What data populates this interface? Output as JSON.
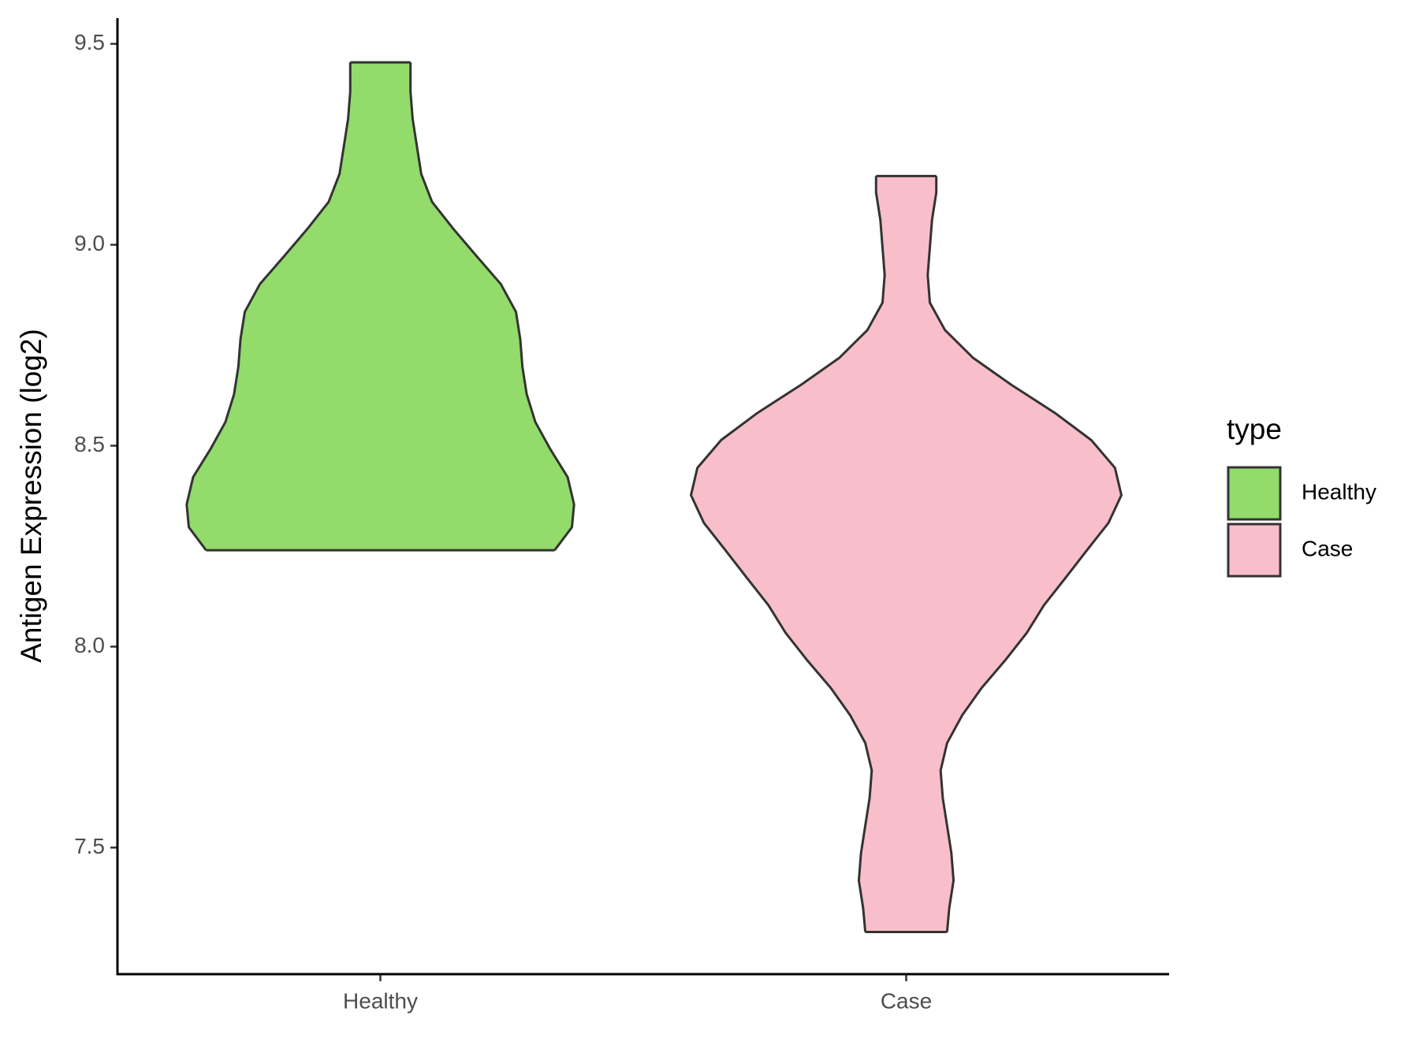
{
  "chart_data": {
    "type": "violin",
    "ylabel": "Antigen Expression (log2)",
    "categories": [
      "Healthy",
      "Case"
    ],
    "legend_title": "type",
    "ylim": [
      7.185,
      9.564
    ],
    "yticks": [
      7.5,
      {
        "value": 8,
        "label": "8.0"
      },
      8.5,
      {
        "value": 9,
        "label": "9.0"
      },
      9.5
    ],
    "series": [
      {
        "name": "Healthy",
        "color": "#93db6b",
        "y": [
          8.24,
          8.297,
          8.354,
          8.422,
          8.491,
          8.559,
          8.628,
          8.696,
          8.765,
          8.833,
          8.902,
          8.97,
          9.039,
          9.107,
          9.176,
          9.244,
          9.313,
          9.381,
          9.454
        ],
        "density": [
          0.81,
          0.89,
          0.9,
          0.87,
          0.79,
          0.72,
          0.68,
          0.66,
          0.65,
          0.63,
          0.56,
          0.45,
          0.34,
          0.24,
          0.19,
          0.17,
          0.15,
          0.14,
          0.14
        ]
      },
      {
        "name": "Case",
        "color": "#f8bfca",
        "y": [
          7.29,
          7.349,
          7.418,
          7.486,
          7.555,
          7.623,
          7.692,
          7.76,
          7.829,
          7.897,
          7.966,
          8.034,
          8.103,
          8.171,
          8.24,
          8.308,
          8.377,
          8.445,
          8.514,
          8.582,
          8.651,
          8.719,
          8.788,
          8.856,
          8.925,
          8.993,
          9.062,
          9.13,
          9.171
        ],
        "density": [
          0.19,
          0.2,
          0.22,
          0.21,
          0.19,
          0.17,
          0.16,
          0.19,
          0.26,
          0.35,
          0.46,
          0.56,
          0.64,
          0.74,
          0.84,
          0.94,
          1.0,
          0.97,
          0.86,
          0.69,
          0.49,
          0.31,
          0.18,
          0.11,
          0.1,
          0.11,
          0.12,
          0.14,
          0.14
        ]
      }
    ]
  }
}
